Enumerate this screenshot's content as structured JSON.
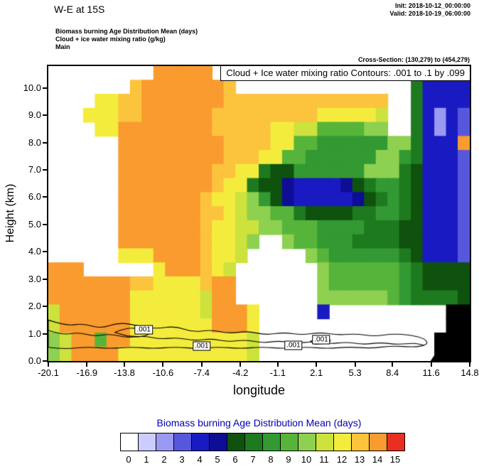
{
  "header": {
    "title": "W-E at 15S",
    "init": "Init: 2018-10-12_00:00:00",
    "valid": "Valid: 2018-10-19_06:00:00",
    "meta": [
      "Biomass burning Age Distribution Mean  (days)",
      "Cloud + ice water mixing ratio  (g/kg)",
      "Main"
    ],
    "cross_section": "Cross-Section: (130,279) to (454,279)"
  },
  "plot": {
    "inset_title": "Cloud + Ice water mixing ratio Contours: .001 to .1 by .099"
  },
  "colorbar": {
    "title": "Biomass burning Age Distribution Mean  (days)",
    "title_color": "#0000b3",
    "colors": [
      "#ffffff",
      "#ccccff",
      "#9a9af2",
      "#5757de",
      "#1a1ac2",
      "#0d0d96",
      "#0e520e",
      "#1e7a1e",
      "#339933",
      "#57b43b",
      "#8ed050",
      "#cde23c",
      "#f4ec3d",
      "#fcc33d",
      "#f99b2e",
      "#e92f1f"
    ],
    "labels": [
      "0",
      "1",
      "2",
      "3",
      "4",
      "5",
      "6",
      "7",
      "8",
      "9",
      "10",
      "11",
      "12",
      "13",
      "14",
      "15"
    ]
  },
  "chart_data": {
    "type": "heatmap",
    "title": "W-E at 15S",
    "xlabel": "longitude",
    "ylabel": "Height (km)",
    "x_ticks": [
      "-20.1",
      "-16.9",
      "-13.8",
      "-10.6",
      "-7.4",
      "-4.2",
      "-1.1",
      "2.1",
      "5.3",
      "8.4",
      "11.6",
      "14.8"
    ],
    "y_ticks": [
      "0.0",
      "1.0",
      "2.0",
      "3.0",
      "4.0",
      "5.0",
      "6.0",
      "7.0",
      "8.0",
      "9.0",
      "10.0"
    ],
    "xlim": [
      -20.1,
      14.8
    ],
    "ylim": [
      0,
      10.8
    ],
    "fill_field": "Biomass burning Age Distribution Mean (days)",
    "fill_levels": [
      0,
      1,
      2,
      3,
      4,
      5,
      6,
      7,
      8,
      9,
      10,
      11,
      12,
      13,
      14,
      15
    ],
    "contour_field": "Cloud + Ice water mixing ratio (g/kg)",
    "contour_levels": ".001 to .1 by .099",
    "palette": {
      ".": "#ffffff",
      "1": "#ccccff",
      "2": "#9a9af2",
      "3": "#5757de",
      "4": "#1a1ac2",
      "5": "#0d0d96",
      "6": "#0e520e",
      "7": "#1e7a1e",
      "8": "#339933",
      "9": "#57b43b",
      "a": "#8ed050",
      "b": "#cde23c",
      "c": "#f4ec3d",
      "d": "#fcc33d",
      "e": "#f99b2e",
      "f": "#e92f1f",
      "k": "#000000"
    },
    "grid": {
      "cols": 36,
      "encoding": "each char = biomass burning age level in days ('.'=0/clear, 1-9, a-f = 10-15, k = terrain); rows top(10.8km) to bottom(0km), cols lon -20.1 to 14.8",
      "rows_top_to_bottom": [
        ".........eeeee..................7444",
        ".......deeeeeeed...............74444",
        "....ccddeeeeeeedddddddddddddd..74444",
        "...cccddeeeeeedddddddddcccccb..74243",
        "....cceeeeeeeedddddccbb9999aa..74243",
        "......eeeeeeeeeddddcc99888888aa7444e",
        "......eeeeeeeeedddcc99888888aa874443",
        "......eeeeeeeeddcc766888888aaa764443",
        "......eeeeeeeedcc7665444456788764443",
        "......eeeeeeedccba865444445678764443",
        "......eeeeeeeddcbaa99766667788764443",
        "......eeeeeeedccbbaa9998888777664443",
        "......eeeeeeedccba..a998887777664443",
        "......ccceeeedccb.....a9888888764443",
        "eee......ceeedcb.......a999999876666",
        "eeeeeeeddccccdee.......a999999876666",
        "eeeeeeeccccccbee.......aaaaaa9877776",
        "beeeeeeccccccbeeec.....4..........kk",
        "beeeeeeccccccceeec................kk",
        "abee9eeccccccccccb...............kkk",
        "abeeeecccccccccccb...............kkk"
      ]
    },
    "terrain_polygon": [
      [
        11.55,
        0
      ],
      [
        12.0,
        0.3
      ],
      [
        12.6,
        0.75
      ],
      [
        13.1,
        0.95
      ],
      [
        13.7,
        1.3
      ],
      [
        14.2,
        1.55
      ],
      [
        14.8,
        2.0
      ],
      [
        14.8,
        0
      ]
    ],
    "contour_paths": [
      {
        "closed": true,
        "pts": [
          [
            -20.1,
            1.5
          ],
          [
            -18.6,
            1.28
          ],
          [
            -17.2,
            1.38
          ],
          [
            -15.8,
            1.18
          ],
          [
            -14.2,
            1.42
          ],
          [
            -12.6,
            1.28
          ],
          [
            -11.2,
            1.18
          ],
          [
            -9.6,
            1.28
          ],
          [
            -8.1,
            1.05
          ],
          [
            -6.6,
            1.15
          ],
          [
            -5.1,
            1.0
          ],
          [
            -3.6,
            1.1
          ],
          [
            -2.1,
            0.95
          ],
          [
            -0.6,
            1.05
          ],
          [
            0.9,
            0.95
          ],
          [
            2.4,
            1.05
          ],
          [
            3.9,
            0.95
          ],
          [
            5.4,
            1.0
          ],
          [
            6.9,
            0.9
          ],
          [
            8.4,
            1.0
          ],
          [
            9.9,
            0.95
          ],
          [
            11.1,
            0.82
          ],
          [
            11.35,
            0.6
          ],
          [
            10.2,
            0.5
          ],
          [
            8.4,
            0.56
          ],
          [
            6.6,
            0.46
          ],
          [
            4.8,
            0.52
          ],
          [
            3.0,
            0.45
          ],
          [
            1.2,
            0.52
          ],
          [
            -0.6,
            0.45
          ],
          [
            -2.4,
            0.52
          ],
          [
            -4.2,
            0.45
          ],
          [
            -6.0,
            0.52
          ],
          [
            -7.8,
            0.45
          ],
          [
            -9.6,
            0.52
          ],
          [
            -11.4,
            0.45
          ],
          [
            -13.2,
            0.52
          ],
          [
            -15.0,
            0.45
          ],
          [
            -16.8,
            0.52
          ],
          [
            -18.6,
            0.44
          ],
          [
            -20.1,
            0.5
          ]
        ]
      },
      {
        "closed": true,
        "pts": [
          [
            -14.6,
            1.05
          ],
          [
            -13.6,
            1.22
          ],
          [
            -12.4,
            1.18
          ],
          [
            -11.6,
            1.02
          ],
          [
            -12.3,
            0.88
          ],
          [
            -13.6,
            0.92
          ]
        ]
      },
      {
        "closed": false,
        "pts": [
          [
            -20.1,
            1.12
          ],
          [
            -18.9,
            0.95
          ],
          [
            -17.6,
            1.05
          ],
          [
            -16.3,
            0.9
          ],
          [
            -15.0,
            1.0
          ],
          [
            -13.6,
            0.85
          ],
          [
            -12.2,
            0.92
          ],
          [
            -10.8,
            0.8
          ],
          [
            -9.4,
            0.86
          ],
          [
            -8.0,
            0.74
          ],
          [
            -6.6,
            0.82
          ],
          [
            -5.2,
            0.7
          ],
          [
            -3.8,
            0.78
          ],
          [
            -2.4,
            0.66
          ],
          [
            -1.0,
            0.74
          ],
          [
            0.4,
            0.64
          ],
          [
            1.8,
            0.72
          ],
          [
            3.2,
            0.62
          ],
          [
            4.6,
            0.7
          ],
          [
            6.0,
            0.6
          ],
          [
            7.4,
            0.68
          ],
          [
            8.8,
            0.6
          ],
          [
            10.2,
            0.66
          ],
          [
            11.0,
            0.58
          ]
        ]
      },
      {
        "closed": true,
        "pts": [
          [
            1.6,
            0.72
          ],
          [
            2.5,
            0.86
          ],
          [
            3.4,
            0.78
          ],
          [
            3.0,
            0.64
          ],
          [
            2.0,
            0.62
          ]
        ]
      }
    ],
    "contour_labels": [
      {
        "text": ".001",
        "lon": -12.2,
        "km": 1.15
      },
      {
        "text": ".001",
        "lon": -7.4,
        "km": 0.55
      },
      {
        "text": ".001",
        "lon": 0.2,
        "km": 0.58
      },
      {
        "text": ".001",
        "lon": 2.5,
        "km": 0.78
      }
    ]
  }
}
